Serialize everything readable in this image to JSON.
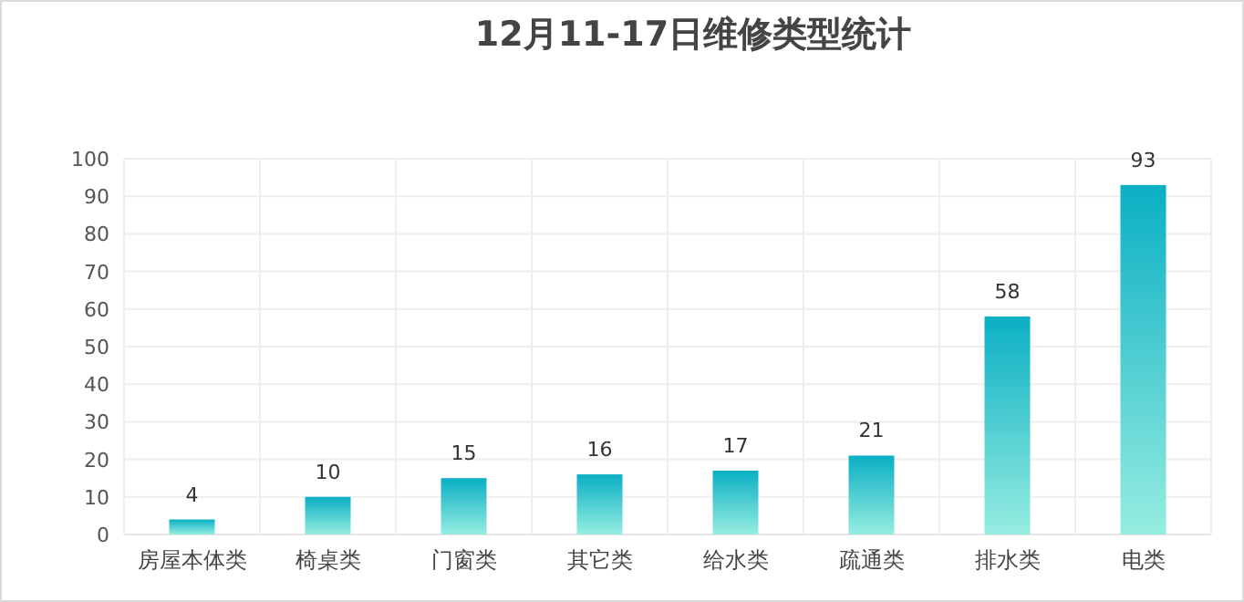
{
  "chart_data": {
    "type": "bar",
    "title": "12月11-17日维修类型统计",
    "categories": [
      "房屋本体类",
      "椅桌类",
      "门窗类",
      "其它类",
      "给水类",
      "疏通类",
      "排水类",
      "电类"
    ],
    "values": [
      4,
      10,
      15,
      16,
      17,
      21,
      58,
      93
    ],
    "color": "#0aafc4",
    "ylim": [
      0,
      100
    ],
    "yticks": [
      0,
      10,
      20,
      30,
      40,
      50,
      60,
      70,
      80,
      90,
      100
    ],
    "grid": true,
    "data_labels": true
  }
}
